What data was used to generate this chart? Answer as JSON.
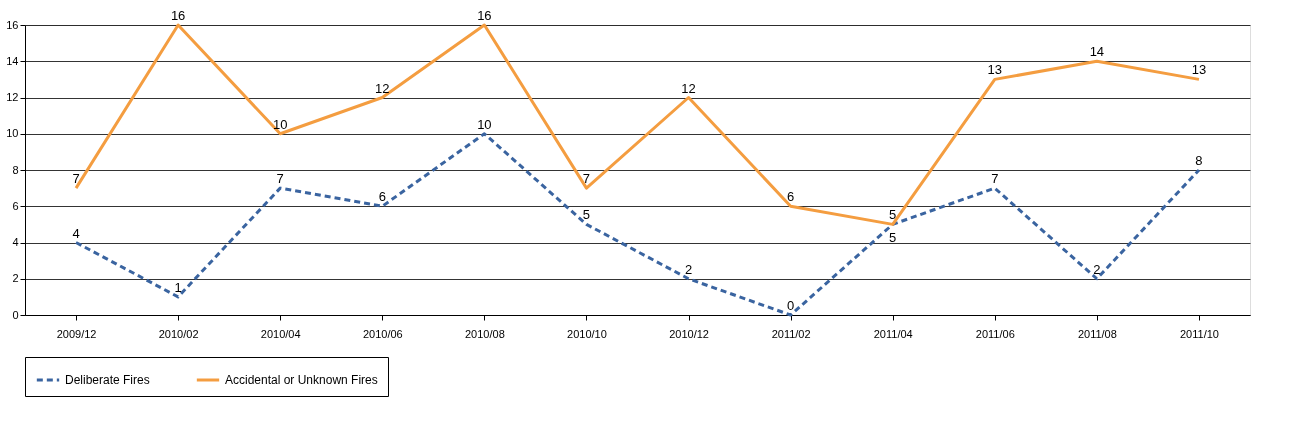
{
  "chart_data": {
    "type": "line",
    "categories": [
      "2009/12",
      "2010/02",
      "2010/04",
      "2010/06",
      "2010/08",
      "2010/10",
      "2010/12",
      "2011/02",
      "2011/04",
      "2011/06",
      "2011/08",
      "2011/10"
    ],
    "series": [
      {
        "name": "Deliberate Fires",
        "color": "#3a64a0",
        "line_style": "dashed",
        "values": [
          4,
          1,
          7,
          6,
          10,
          5,
          2,
          0,
          5,
          7,
          2,
          8
        ]
      },
      {
        "name": "Accidental or Unknown Fires",
        "color": "#f49d40",
        "line_style": "solid",
        "values": [
          7,
          16,
          10,
          12,
          16,
          7,
          12,
          6,
          5,
          13,
          14,
          13
        ]
      }
    ],
    "ylim": [
      0,
      16
    ],
    "yticks": [
      0,
      2,
      4,
      6,
      8,
      10,
      12,
      14,
      16
    ],
    "grid": "y",
    "legend": "bottom",
    "data_labels": true,
    "marker": "none"
  }
}
